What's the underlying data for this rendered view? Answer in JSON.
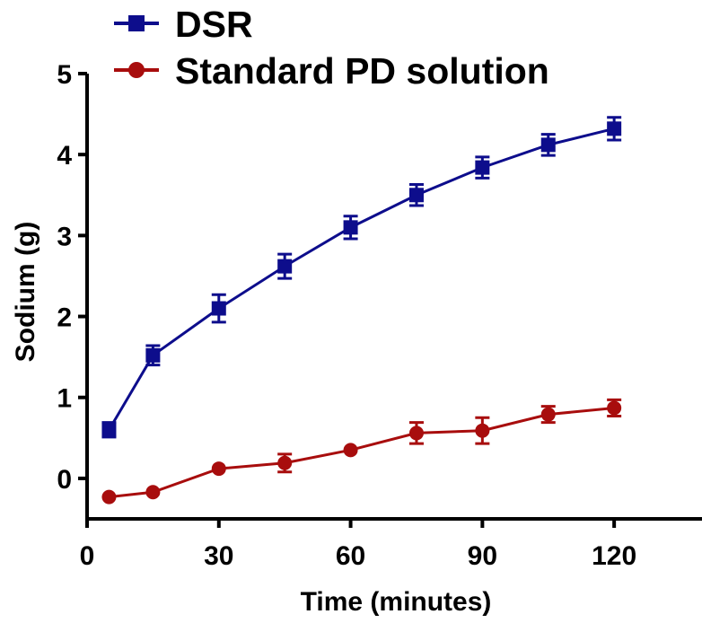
{
  "chart_data": {
    "type": "line",
    "title": "",
    "xlabel": "Time (minutes)",
    "ylabel": "Sodium (g)",
    "xlim": [
      0,
      140
    ],
    "ylim": [
      -0.5,
      5
    ],
    "xticks": [
      "0",
      "30",
      "60",
      "90",
      "120"
    ],
    "yticks": [
      "0",
      "1",
      "2",
      "3",
      "4",
      "5"
    ],
    "legend_position": "top-left",
    "grid": false,
    "series": [
      {
        "name": "DSR",
        "color": "#0d0d8c",
        "marker": "square",
        "x": [
          5,
          15,
          30,
          45,
          60,
          75,
          90,
          105,
          120
        ],
        "y": [
          0.6,
          1.52,
          2.1,
          2.62,
          3.1,
          3.5,
          3.84,
          4.12,
          4.32
        ],
        "error": [
          0.09,
          0.12,
          0.17,
          0.15,
          0.14,
          0.13,
          0.13,
          0.13,
          0.14
        ]
      },
      {
        "name": "Standard PD solution",
        "color": "#a80d0d",
        "marker": "circle",
        "x": [
          5,
          15,
          30,
          45,
          60,
          75,
          90,
          105,
          120
        ],
        "y": [
          -0.23,
          -0.17,
          0.12,
          0.19,
          0.35,
          0.56,
          0.59,
          0.79,
          0.87
        ],
        "error": [
          0.0,
          0.0,
          0.0,
          0.11,
          0.0,
          0.13,
          0.16,
          0.1,
          0.1
        ]
      }
    ]
  }
}
